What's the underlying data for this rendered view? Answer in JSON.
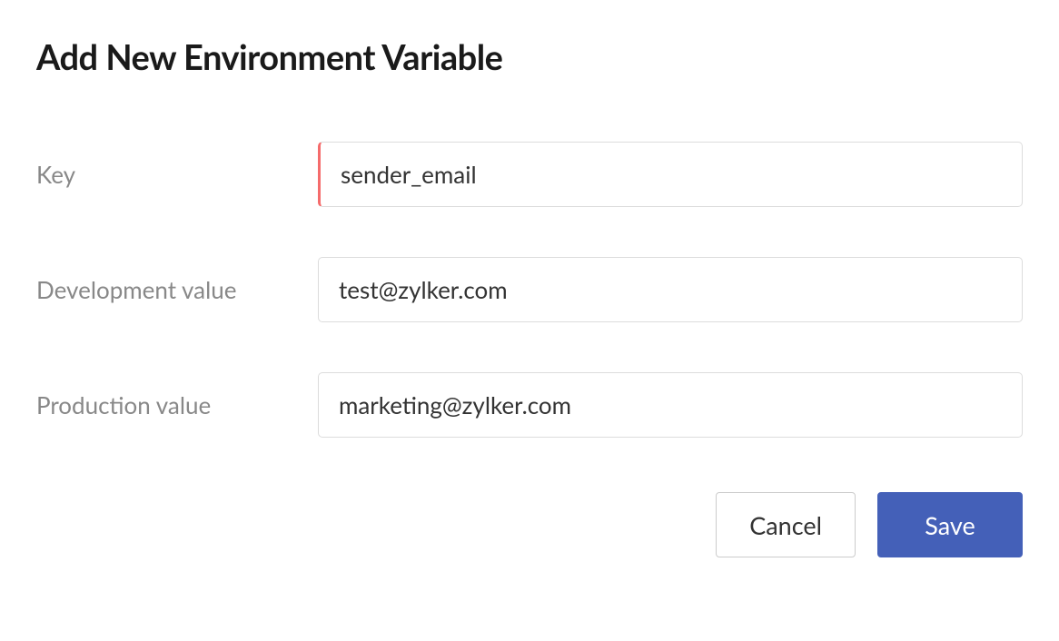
{
  "title": "Add New Environment Variable",
  "fields": {
    "key": {
      "label": "Key",
      "value": "sender_email"
    },
    "development": {
      "label": "Development value",
      "value": "test@zylker.com"
    },
    "production": {
      "label": "Production value",
      "value": "marketing@zylker.com"
    }
  },
  "buttons": {
    "cancel": "Cancel",
    "save": "Save"
  },
  "colors": {
    "primary": "#4460b8",
    "error_border": "#f56b6b",
    "input_border": "#dcdcdc",
    "label_text": "#888888",
    "title_text": "#1a1a1a",
    "input_text": "#333333",
    "background": "#ffffff"
  }
}
